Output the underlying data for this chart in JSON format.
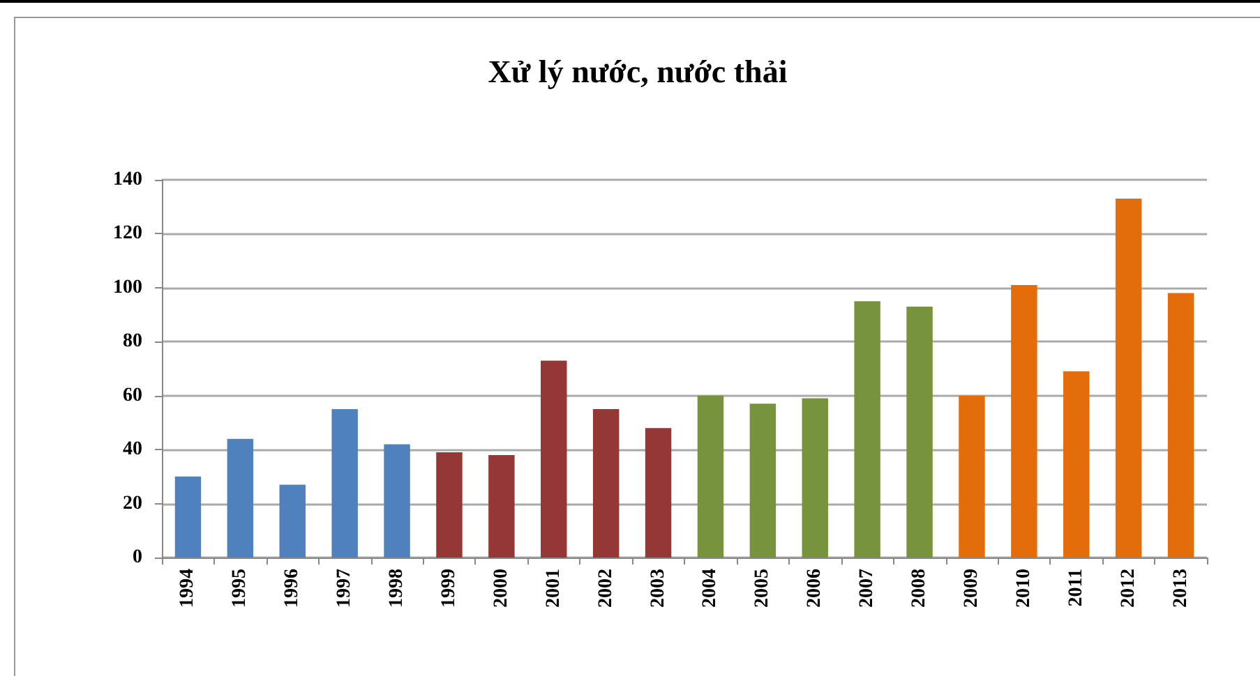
{
  "chart_data": {
    "type": "bar",
    "title": "Xử lý nước, nước thải",
    "categories": [
      "1994",
      "1995",
      "1996",
      "1997",
      "1998",
      "1999",
      "2000",
      "2001",
      "2002",
      "2003",
      "2004",
      "2005",
      "2006",
      "2007",
      "2008",
      "2009",
      "2010",
      "2011",
      "2012",
      "2013"
    ],
    "values": [
      30,
      44,
      27,
      55,
      42,
      39,
      38,
      73,
      55,
      48,
      60,
      57,
      59,
      95,
      93,
      60,
      101,
      69,
      133,
      98
    ],
    "colors": [
      "#4f81bd",
      "#4f81bd",
      "#4f81bd",
      "#4f81bd",
      "#4f81bd",
      "#953735",
      "#953735",
      "#953735",
      "#953735",
      "#953735",
      "#77933c",
      "#77933c",
      "#77933c",
      "#77933c",
      "#77933c",
      "#e46c0a",
      "#e46c0a",
      "#e46c0a",
      "#e46c0a",
      "#e46c0a"
    ],
    "ylim": [
      0,
      140
    ],
    "yticks": [
      0,
      20,
      40,
      60,
      80,
      100,
      120,
      140
    ],
    "grid": "y"
  }
}
